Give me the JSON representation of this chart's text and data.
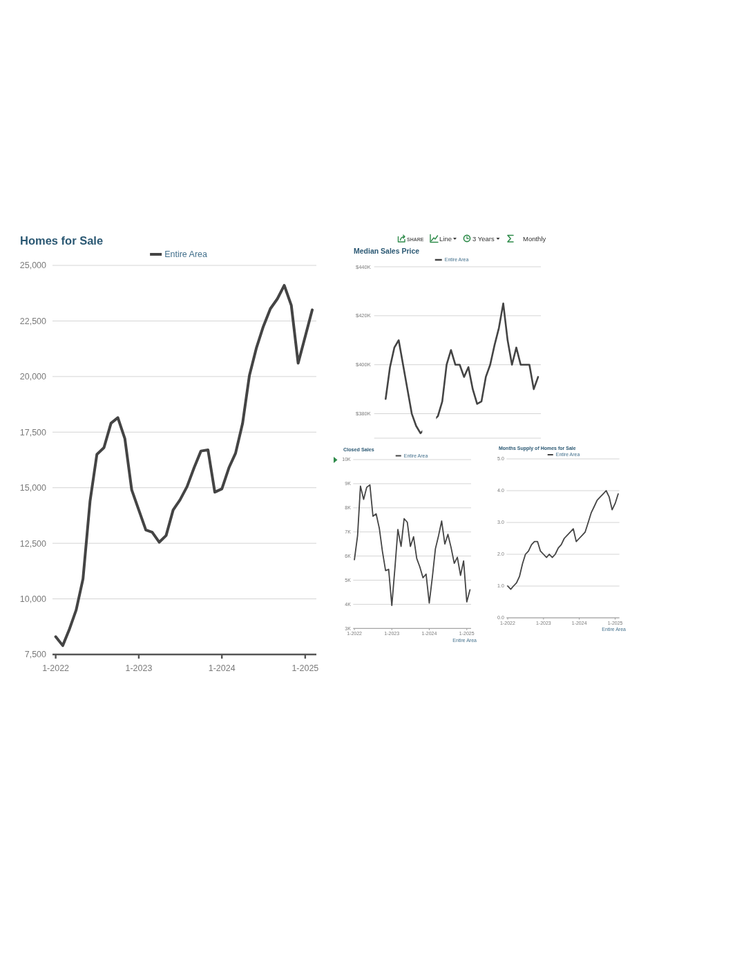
{
  "chart_data": [
    {
      "type": "line",
      "title": "Homes for Sale",
      "x": [
        "2022-01",
        "2022-02",
        "2022-03",
        "2022-04",
        "2022-05",
        "2022-06",
        "2022-07",
        "2022-08",
        "2022-09",
        "2022-10",
        "2022-11",
        "2022-12",
        "2023-01",
        "2023-02",
        "2023-03",
        "2023-04",
        "2023-05",
        "2023-06",
        "2023-07",
        "2023-08",
        "2023-09",
        "2023-10",
        "2023-11",
        "2023-12",
        "2024-01",
        "2024-02",
        "2024-03",
        "2024-04",
        "2024-05",
        "2024-06",
        "2024-07",
        "2024-08",
        "2024-09",
        "2024-10",
        "2024-11",
        "2024-12",
        "2025-01",
        "2025-02"
      ],
      "series": [
        {
          "name": "Entire Area",
          "color": "#444444",
          "values": [
            8300,
            7900,
            8600,
            9500,
            10900,
            14400,
            16500,
            16800,
            17900,
            18150,
            17200,
            14900,
            14000,
            13100,
            13000,
            12550,
            12850,
            14000,
            14450,
            15050,
            15900,
            16650,
            16700,
            14800,
            14950,
            15900,
            16550,
            17900,
            20050,
            21300,
            22250,
            23050,
            23500,
            24100,
            23200,
            20600,
            21800,
            23000
          ]
        }
      ],
      "xlim": [
        "2021-12-18",
        "2025-02-19"
      ],
      "xticks": [
        {
          "value": "2022-01",
          "label": "1-2022"
        },
        {
          "value": "2023-01",
          "label": "1-2023"
        },
        {
          "value": "2024-01",
          "label": "1-2024"
        },
        {
          "value": "2025-01",
          "label": "1-2025"
        }
      ],
      "ylim": [
        7500,
        25000
      ],
      "yticks": [
        {
          "value": 7500,
          "label": "7,500"
        },
        {
          "value": 10000,
          "label": "10,000"
        },
        {
          "value": 12500,
          "label": "12,500"
        },
        {
          "value": 15000,
          "label": "15,000"
        },
        {
          "value": 17500,
          "label": "17,500"
        },
        {
          "value": 20000,
          "label": "20,000"
        },
        {
          "value": 22500,
          "label": "22,500"
        },
        {
          "value": 25000,
          "label": "25,000"
        }
      ],
      "grid": "y",
      "legend": "top"
    },
    {
      "type": "line",
      "title": "Median Sales Price",
      "categories": [
        null,
        null,
        null,
        null,
        null,
        null,
        null,
        null,
        null,
        null,
        null,
        null,
        null,
        null,
        null,
        null,
        null,
        null,
        null,
        null,
        null,
        null,
        null,
        null,
        null,
        null,
        null,
        null,
        null,
        null,
        null,
        null,
        null,
        null,
        null,
        null,
        null,
        null
      ],
      "series": [
        {
          "name": "Entire Area",
          "color": "#444444",
          "values": [
            null,
            null,
            386000,
            399000,
            407000,
            410000,
            400000,
            390000,
            380000,
            375000,
            372000,
            null,
            null,
            null,
            379000,
            385000,
            400000,
            406000,
            400000,
            400000,
            395000,
            399000,
            390000,
            384000,
            385000,
            395000,
            400000,
            408000,
            415000,
            425000,
            410000,
            400000,
            407000,
            400000,
            400000,
            400000,
            390000,
            395000
          ]
        }
      ],
      "ylim": [
        370000,
        440000
      ],
      "yticks": [
        {
          "value": 380000,
          "label": "$380K"
        },
        {
          "value": 400000,
          "label": "$400K"
        },
        {
          "value": 420000,
          "label": "$420K"
        },
        {
          "value": 440000,
          "label": "$440K"
        }
      ],
      "grid": "y",
      "legend": "top",
      "tick_labels": "y",
      "annotations": [
        "SHARE",
        "Line",
        "3 Years",
        "Monthly"
      ]
    },
    {
      "type": "line",
      "title": "Closed Sales",
      "x": [
        "2022-01",
        "2022-02",
        "2022-03",
        "2022-04",
        "2022-05",
        "2022-06",
        "2022-07",
        "2022-08",
        "2022-09",
        "2022-10",
        "2022-11",
        "2022-12",
        "2023-01",
        "2023-02",
        "2023-03",
        "2023-04",
        "2023-05",
        "2023-06",
        "2023-07",
        "2023-08",
        "2023-09",
        "2023-10",
        "2023-11",
        "2023-12",
        "2024-01",
        "2024-02",
        "2024-03",
        "2024-04",
        "2024-05",
        "2024-06",
        "2024-07",
        "2024-08",
        "2024-09",
        "2024-10",
        "2024-11",
        "2024-12",
        "2025-01",
        "2025-02"
      ],
      "series": [
        {
          "name": "Entire Area",
          "color": "#444444",
          "values": [
            5850,
            6850,
            8900,
            8350,
            8850,
            8950,
            7650,
            7750,
            7150,
            6200,
            5400,
            5450,
            3950,
            5550,
            7100,
            6400,
            7550,
            7400,
            6400,
            6800,
            5900,
            5550,
            5100,
            5250,
            4050,
            5150,
            6300,
            6850,
            7450,
            6500,
            6900,
            6350,
            5700,
            5950,
            5200,
            5800,
            4100,
            4600
          ]
        }
      ],
      "xlim": [
        "2021-12-20",
        "2025-02-12"
      ],
      "xticks": [
        {
          "value": "2022-01",
          "label": "1-2022"
        },
        {
          "value": "2023-01",
          "label": "1-2023"
        },
        {
          "value": "2024-01",
          "label": "1-2024"
        },
        {
          "value": "2025-01",
          "label": "1-2025"
        }
      ],
      "ylim": [
        3000,
        10000
      ],
      "yticks": [
        {
          "value": 3000,
          "label": "3K"
        },
        {
          "value": 4000,
          "label": "4K"
        },
        {
          "value": 5000,
          "label": "5K"
        },
        {
          "value": 6000,
          "label": "6K"
        },
        {
          "value": 7000,
          "label": "7K"
        },
        {
          "value": 8000,
          "label": "8K"
        },
        {
          "value": 9000,
          "label": "9K"
        },
        {
          "value": 10000,
          "label": "10K"
        }
      ],
      "grid": "y",
      "legend": "top",
      "annotations": [
        "Entire Area"
      ]
    },
    {
      "type": "line",
      "title": "Months Supply of Homes for Sale",
      "x": [
        "2022-01",
        "2022-02",
        "2022-03",
        "2022-04",
        "2022-05",
        "2022-06",
        "2022-07",
        "2022-08",
        "2022-09",
        "2022-10",
        "2022-11",
        "2022-12",
        "2023-01",
        "2023-02",
        "2023-03",
        "2023-04",
        "2023-05",
        "2023-06",
        "2023-07",
        "2023-08",
        "2023-09",
        "2023-10",
        "2023-11",
        "2023-12",
        "2024-01",
        "2024-02",
        "2024-03",
        "2024-04",
        "2024-05",
        "2024-06",
        "2024-07",
        "2024-08",
        "2024-09",
        "2024-10",
        "2024-11",
        "2024-12",
        "2025-01",
        "2025-02"
      ],
      "series": [
        {
          "name": "Entire Area",
          "color": "#444444",
          "values": [
            1.0,
            0.9,
            1.0,
            1.1,
            1.3,
            1.7,
            2.0,
            2.1,
            2.3,
            2.4,
            2.4,
            2.1,
            2.0,
            1.9,
            2.0,
            1.9,
            2.0,
            2.2,
            2.3,
            2.5,
            2.6,
            2.7,
            2.8,
            2.4,
            2.5,
            2.6,
            2.7,
            3.0,
            3.3,
            3.5,
            3.7,
            3.8,
            3.9,
            4.0,
            3.8,
            3.4,
            3.6,
            3.9
          ]
        }
      ],
      "xlim": [
        "2021-12-20",
        "2025-02-13"
      ],
      "xticks": [
        {
          "value": "2022-01",
          "label": "1-2022"
        },
        {
          "value": "2023-01",
          "label": "1-2023"
        },
        {
          "value": "2024-01",
          "label": "1-2024"
        },
        {
          "value": "2025-01",
          "label": "1-2025"
        }
      ],
      "ylim": [
        0,
        5
      ],
      "yticks": [
        {
          "value": 0,
          "label": "0.0"
        },
        {
          "value": 1,
          "label": "1.0"
        },
        {
          "value": 2,
          "label": "2.0"
        },
        {
          "value": 3,
          "label": "3.0"
        },
        {
          "value": 4,
          "label": "4.0"
        },
        {
          "value": 5,
          "label": "5.0"
        }
      ],
      "grid": "y",
      "legend": "top",
      "annotations": [
        "Entire Area"
      ]
    }
  ]
}
